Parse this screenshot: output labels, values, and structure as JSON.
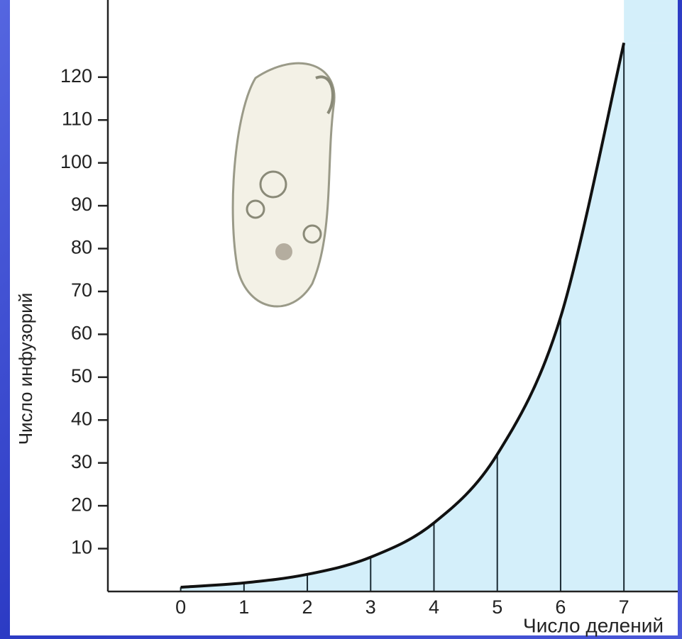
{
  "chart_data": {
    "type": "line",
    "x_label": "Число делений",
    "y_label": "Число инфузорий",
    "x": [
      0,
      1,
      2,
      3,
      4,
      5,
      6,
      7
    ],
    "series": [
      {
        "values": [
          1,
          2,
          4,
          8,
          16,
          32,
          64,
          128
        ],
        "color": "#111111",
        "fill": "#d4effa"
      }
    ],
    "xlim": [
      -1.15,
      7.85
    ],
    "xticks": [
      0,
      1,
      2,
      3,
      4,
      5,
      6,
      7
    ],
    "ylim": [
      0,
      138
    ],
    "yticks": [
      10,
      20,
      30,
      40,
      50,
      60,
      70,
      80,
      90,
      100,
      110,
      120
    ]
  }
}
